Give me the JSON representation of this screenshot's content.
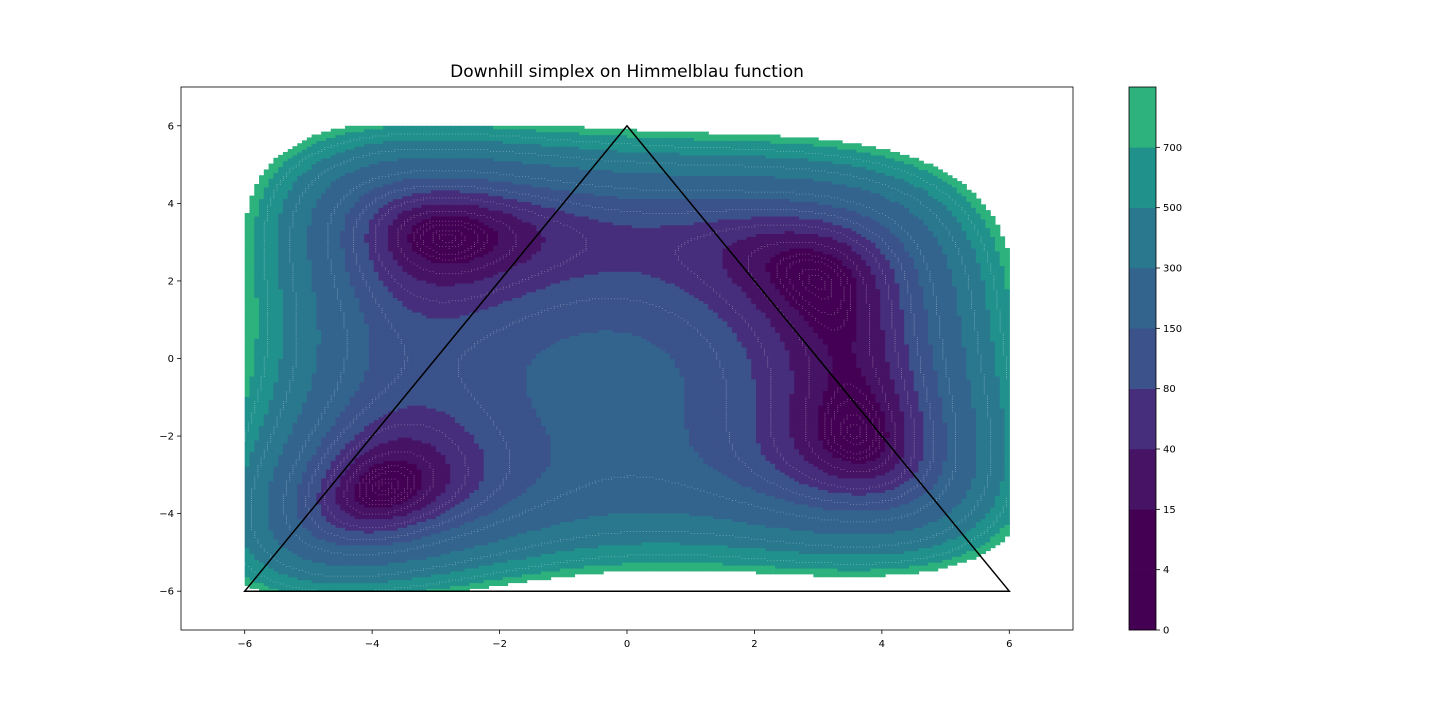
{
  "chart_data": {
    "type": "contour",
    "title": "Downhill simplex on Himmelblau function",
    "function": "Himmelblau",
    "xlabel": "",
    "ylabel": "",
    "xlim": [
      -7,
      7
    ],
    "ylim": [
      -7,
      7
    ],
    "domain": {
      "x": [
        -6,
        6
      ],
      "y": [
        -6,
        6
      ]
    },
    "x_ticks": [
      -6,
      -4,
      -2,
      0,
      2,
      4,
      6
    ],
    "y_ticks": [
      -6,
      -4,
      -2,
      0,
      2,
      4,
      6
    ],
    "x_tick_labels": [
      "−6",
      "−4",
      "−2",
      "0",
      "2",
      "4",
      "6"
    ],
    "y_tick_labels": [
      "−6",
      "−4",
      "−2",
      "0",
      "2",
      "4",
      "6"
    ],
    "contour_levels": [
      0,
      4,
      15,
      40,
      80,
      150,
      300,
      500,
      700,
      800
    ],
    "level_colors": [
      "#440154",
      "#440154",
      "#440154",
      "#471365",
      "#472e7c",
      "#3b528b",
      "#32648e",
      "#2a788e",
      "#21918c",
      "#2db27d",
      "#9cd93b"
    ],
    "minor_line_levels": [
      0.5,
      2,
      6,
      10,
      25,
      60,
      110,
      200,
      400,
      600
    ],
    "colorbar": {
      "tick_values": [
        0,
        4,
        15,
        40,
        80,
        150,
        300,
        500,
        700
      ],
      "tick_labels": [
        "0",
        "4",
        "15",
        "40",
        "80",
        "150",
        "300",
        "500",
        "700"
      ]
    },
    "simplex": {
      "vertices": [
        [
          -6,
          -6
        ],
        [
          0,
          6
        ],
        [
          6,
          -6
        ]
      ],
      "line_color": "#000000"
    },
    "grid": false,
    "legend": "none"
  }
}
